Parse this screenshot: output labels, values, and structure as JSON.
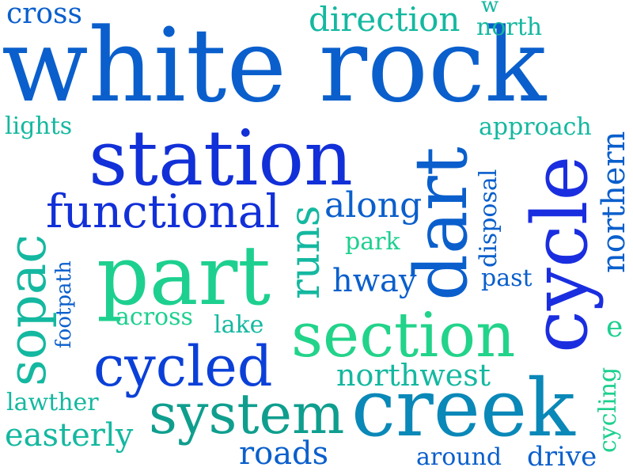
{
  "words": {
    "white_rock": "white rock",
    "station": "station",
    "dart": "dart",
    "cycle": "cycle",
    "part": "part",
    "creek": "creek",
    "section": "section",
    "cycled": "cycled",
    "system": "system",
    "functional": "functional",
    "sopac": "sopac",
    "runs": "runs",
    "northern": "northern",
    "along": "along",
    "hway": "hway",
    "direction": "direction",
    "cross": "cross",
    "north": "north",
    "w": "w",
    "approach": "approach",
    "lights": "lights",
    "disposal": "disposal",
    "park": "park",
    "past": "past",
    "footpath": "footpath",
    "across": "across",
    "lake": "lake",
    "northwest": "northwest",
    "e": "e",
    "lawther": "lawther",
    "easterly": "easterly",
    "roads": "roads",
    "around": "around",
    "drive": "drive",
    "cycling": "cycling"
  },
  "colors": {
    "blue": "#0a5fcc",
    "royal": "#1230d8",
    "teal": "#0f9e8e",
    "mint": "#1dd08f",
    "sea": "#0a88b8"
  }
}
